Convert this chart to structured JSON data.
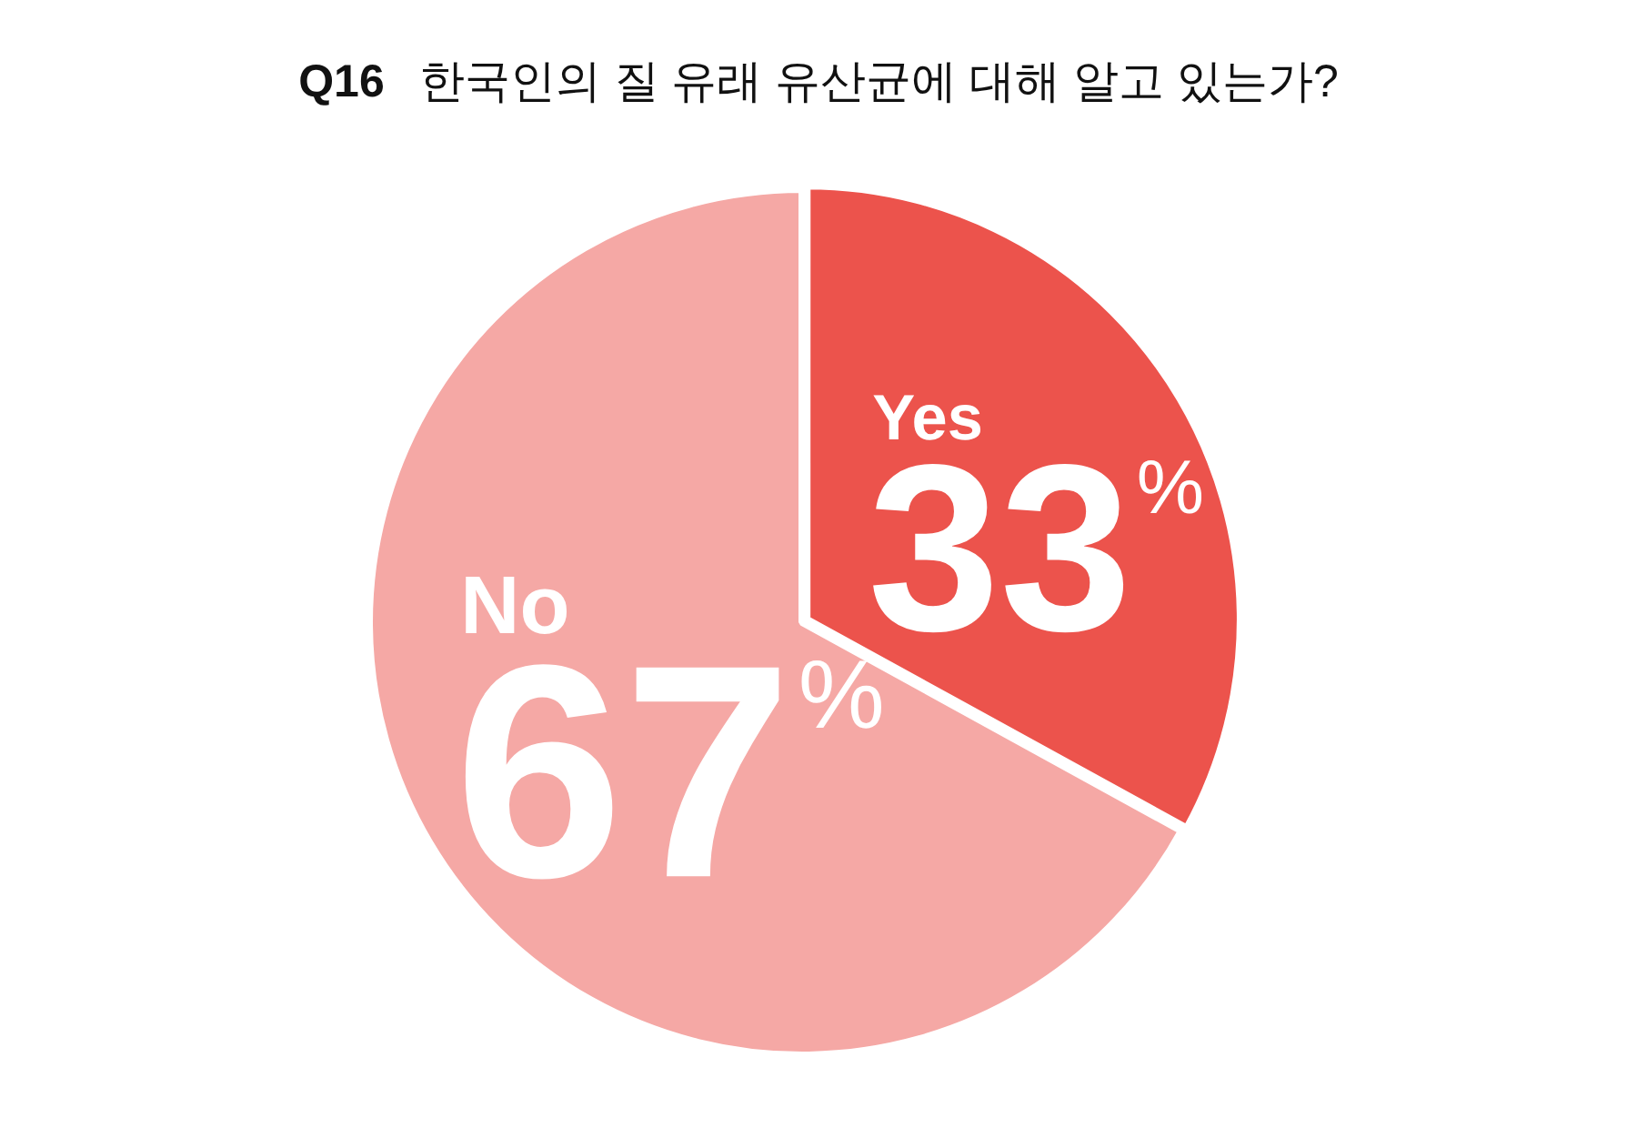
{
  "chart_data": {
    "type": "pie",
    "title": "Q16 한국인의 질 유래 유산균에 대해 알고 있는가?",
    "categories": [
      "Yes",
      "No"
    ],
    "values": [
      33,
      67
    ],
    "colors": [
      "#ec534c",
      "#f5a8a5"
    ],
    "value_labels": [
      "33%",
      "67%"
    ]
  }
}
